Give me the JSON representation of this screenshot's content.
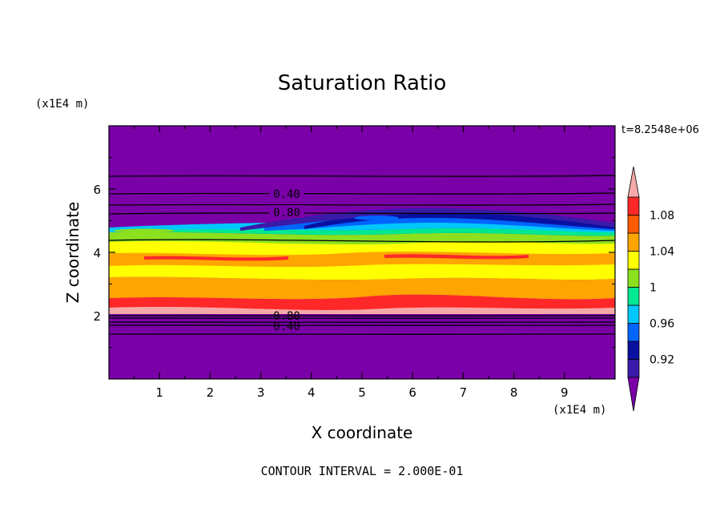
{
  "chart_data": {
    "type": "heatmap",
    "title": "Saturation Ratio",
    "xlabel": "X coordinate",
    "ylabel": "Z coordinate",
    "x_unit": "(x1E4 m)",
    "y_unit": "(x1E4 m)",
    "time_label": "t=8.2548e+06",
    "footer": "CONTOUR INTERVAL = 2.000E-01",
    "xlim": [
      0,
      10
    ],
    "ylim": [
      0,
      8
    ],
    "x_ticks": [
      "1",
      "2",
      "3",
      "4",
      "5",
      "6",
      "7",
      "8",
      "9"
    ],
    "y_ticks": [
      "2",
      "4",
      "6"
    ],
    "contour_labels": [
      "0.40",
      "0.80",
      "0.80",
      "0.40"
    ],
    "colorbar": {
      "tick_labels": [
        "1.08",
        "1.04",
        "1",
        "0.96",
        "0.92"
      ],
      "levels": [
        0.9,
        0.92,
        0.94,
        0.96,
        0.98,
        1.0,
        1.02,
        1.04,
        1.06,
        1.08,
        1.1
      ],
      "colors": [
        "#7a00a8",
        "#3a1aa8",
        "#0a10a0",
        "#0064ff",
        "#00c8ff",
        "#00e890",
        "#8ce01e",
        "#ffff00",
        "#ffa500",
        "#ff5a00",
        "#ff2828",
        "#f6a8a8"
      ]
    }
  }
}
